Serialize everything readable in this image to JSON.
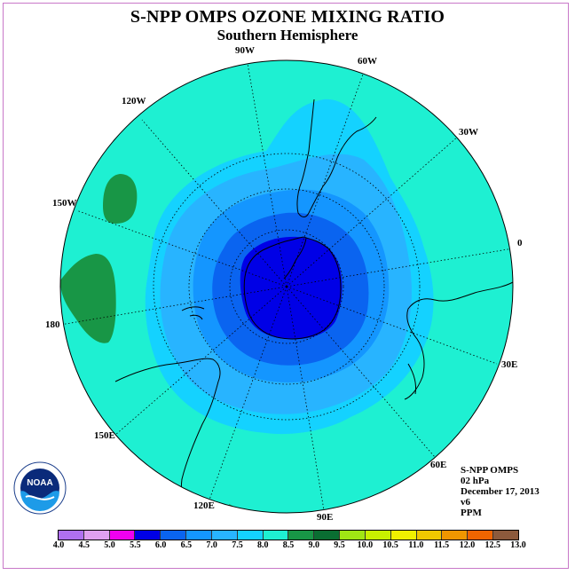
{
  "title": "S-NPP OMPS OZONE MIXING RATIO",
  "subtitle": "Southern Hemisphere",
  "longitude_labels": {
    "lon_90w": "90W",
    "lon_60w": "60W",
    "lon_30w": "30W",
    "lon_0": "0",
    "lon_30e": "30E",
    "lon_60e": "60E",
    "lon_90e": "90E",
    "lon_120e": "120E",
    "lon_150e": "150E",
    "lon_180": "180",
    "lon_150w": "150W",
    "lon_120w": "120W"
  },
  "info": {
    "instrument": "S-NPP OMPS",
    "level": "02 hPa",
    "date": "December 17, 2013",
    "version": "v6",
    "units": "PPM"
  },
  "logo_text": "NOAA",
  "colorbar": {
    "ticks": [
      "4.0",
      "4.5",
      "5.0",
      "5.5",
      "6.0",
      "6.5",
      "7.0",
      "7.5",
      "8.0",
      "8.5",
      "9.0",
      "9.5",
      "10.0",
      "10.5",
      "11.0",
      "11.5",
      "12.0",
      "12.5",
      "13.0"
    ],
    "colors": [
      "#b070f0",
      "#e0a0f0",
      "#f000f0",
      "#0000e6",
      "#0a64f0",
      "#1496ff",
      "#28b4ff",
      "#14d2ff",
      "#1ef0d2",
      "#189646",
      "#0a6e32",
      "#a0e614",
      "#c8f000",
      "#f0f000",
      "#f0c800",
      "#f09600",
      "#f06400",
      "#e60000",
      "#8c5a3c"
    ]
  },
  "map_colors": {
    "level_7_5_8_0": "#1ef0d2",
    "level_7_0_7_5": "#14d2ff",
    "level_6_5_7_0": "#28b4ff",
    "level_6_0_6_5": "#1496ff",
    "level_5_5_6_0": "#0a64f0",
    "level_5_0_5_5": "#0000e6",
    "level_8_5_9_0": "#189646"
  }
}
